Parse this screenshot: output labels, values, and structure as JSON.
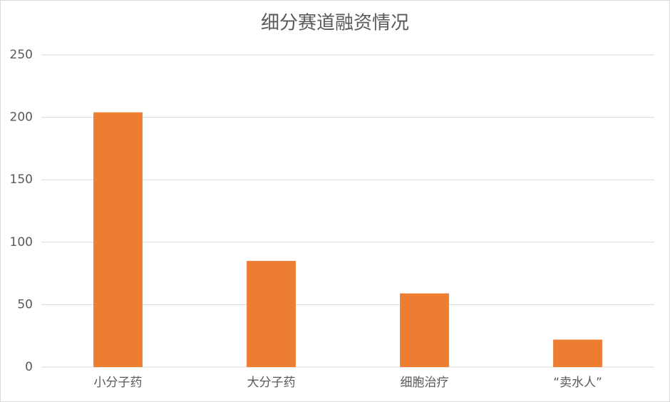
{
  "chart_data": {
    "type": "bar",
    "title": "细分赛道融资情况",
    "categories": [
      "小分子药",
      "大分子药",
      "细胞治疗",
      "“卖水人”"
    ],
    "values": [
      204,
      85,
      59,
      22
    ],
    "color": "#ed7d31",
    "ylim": [
      0,
      250
    ],
    "yticks": [
      0,
      50,
      100,
      150,
      200,
      250
    ],
    "grid": true
  }
}
